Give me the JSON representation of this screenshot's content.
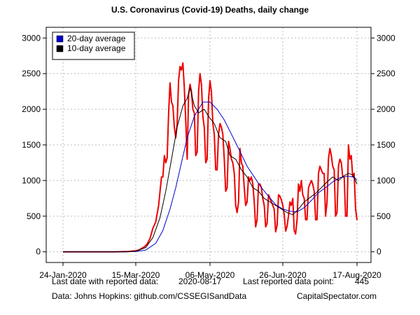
{
  "chart_data": {
    "type": "line",
    "title": "U.S. Coronavirus (Covid-19) Deaths, daily change",
    "x_start": "2020-01-24",
    "x_end": "2020-08-17",
    "x_ticks": [
      "2020-01-24",
      "2020-03-15",
      "2020-05-06",
      "2020-06-26",
      "2020-08-17"
    ],
    "x_tick_labels": [
      "24-Jan-2020",
      "15-Mar-2020",
      "06-May-2020",
      "26-Jun-2020",
      "17-Aug-2020"
    ],
    "ylim": [
      -150,
      3150
    ],
    "y_ticks": [
      0,
      500,
      1000,
      1500,
      2000,
      2500,
      3000
    ],
    "grid": true,
    "legend_position": "top-left",
    "colors": {
      "daily": "#ee0000",
      "avg20": "#0000cc",
      "avg10": "#000000"
    },
    "daily_points": [
      [
        "2020-01-24",
        0
      ],
      [
        "2020-02-29",
        0
      ],
      [
        "2020-03-05",
        2
      ],
      [
        "2020-03-10",
        5
      ],
      [
        "2020-03-15",
        15
      ],
      [
        "2020-03-17",
        25
      ],
      [
        "2020-03-19",
        45
      ],
      [
        "2020-03-21",
        70
      ],
      [
        "2020-03-23",
        110
      ],
      [
        "2020-03-25",
        190
      ],
      [
        "2020-03-27",
        330
      ],
      [
        "2020-03-29",
        420
      ],
      [
        "2020-03-31",
        650
      ],
      [
        "2020-04-02",
        1050
      ],
      [
        "2020-04-03",
        1050
      ],
      [
        "2020-04-04",
        1350
      ],
      [
        "2020-04-05",
        1250
      ],
      [
        "2020-04-06",
        1320
      ],
      [
        "2020-04-07",
        1950
      ],
      [
        "2020-04-08",
        2370
      ],
      [
        "2020-04-09",
        2100
      ],
      [
        "2020-04-10",
        2050
      ],
      [
        "2020-04-11",
        1750
      ],
      [
        "2020-04-12",
        1600
      ],
      [
        "2020-04-13",
        1800
      ],
      [
        "2020-04-14",
        2400
      ],
      [
        "2020-04-15",
        2600
      ],
      [
        "2020-04-16",
        2550
      ],
      [
        "2020-04-17",
        2650
      ],
      [
        "2020-04-18",
        2300
      ],
      [
        "2020-04-19",
        1850
      ],
      [
        "2020-04-20",
        1300
      ],
      [
        "2020-04-21",
        2200
      ],
      [
        "2020-04-22",
        2350
      ],
      [
        "2020-04-23",
        2250
      ],
      [
        "2020-04-24",
        2000
      ],
      [
        "2020-04-25",
        1950
      ],
      [
        "2020-04-26",
        1350
      ],
      [
        "2020-04-27",
        1400
      ],
      [
        "2020-04-28",
        2250
      ],
      [
        "2020-04-29",
        2500
      ],
      [
        "2020-04-30",
        2350
      ],
      [
        "2020-05-01",
        1900
      ],
      [
        "2020-05-02",
        1750
      ],
      [
        "2020-05-03",
        1250
      ],
      [
        "2020-05-04",
        1300
      ],
      [
        "2020-05-05",
        2150
      ],
      [
        "2020-05-06",
        2400
      ],
      [
        "2020-05-07",
        2250
      ],
      [
        "2020-05-08",
        1800
      ],
      [
        "2020-05-09",
        1650
      ],
      [
        "2020-05-10",
        1150
      ],
      [
        "2020-05-11",
        1150
      ],
      [
        "2020-05-12",
        1650
      ],
      [
        "2020-05-13",
        1800
      ],
      [
        "2020-05-14",
        1750
      ],
      [
        "2020-05-15",
        1650
      ],
      [
        "2020-05-16",
        1300
      ],
      [
        "2020-05-17",
        850
      ],
      [
        "2020-05-18",
        900
      ],
      [
        "2020-05-19",
        1550
      ],
      [
        "2020-05-20",
        1450
      ],
      [
        "2020-05-21",
        1300
      ],
      [
        "2020-05-22",
        1250
      ],
      [
        "2020-05-23",
        1100
      ],
      [
        "2020-05-24",
        650
      ],
      [
        "2020-05-25",
        550
      ],
      [
        "2020-05-26",
        700
      ],
      [
        "2020-05-27",
        1450
      ],
      [
        "2020-05-28",
        1250
      ],
      [
        "2020-05-29",
        1200
      ],
      [
        "2020-05-30",
        900
      ],
      [
        "2020-05-31",
        650
      ],
      [
        "2020-06-01",
        700
      ],
      [
        "2020-06-02",
        1050
      ],
      [
        "2020-06-03",
        1000
      ],
      [
        "2020-06-04",
        1050
      ],
      [
        "2020-06-05",
        950
      ],
      [
        "2020-06-06",
        700
      ],
      [
        "2020-06-07",
        350
      ],
      [
        "2020-06-08",
        450
      ],
      [
        "2020-06-09",
        950
      ],
      [
        "2020-06-10",
        950
      ],
      [
        "2020-06-11",
        900
      ],
      [
        "2020-06-12",
        750
      ],
      [
        "2020-06-13",
        650
      ],
      [
        "2020-06-14",
        350
      ],
      [
        "2020-06-15",
        400
      ],
      [
        "2020-06-16",
        800
      ],
      [
        "2020-06-17",
        750
      ],
      [
        "2020-06-18",
        700
      ],
      [
        "2020-06-19",
        650
      ],
      [
        "2020-06-20",
        600
      ],
      [
        "2020-06-21",
        280
      ],
      [
        "2020-06-22",
        370
      ],
      [
        "2020-06-23",
        800
      ],
      [
        "2020-06-24",
        780
      ],
      [
        "2020-06-25",
        730
      ],
      [
        "2020-06-26",
        650
      ],
      [
        "2020-06-27",
        520
      ],
      [
        "2020-06-28",
        290
      ],
      [
        "2020-06-29",
        360
      ],
      [
        "2020-06-30",
        500
      ],
      [
        "2020-07-01",
        700
      ],
      [
        "2020-07-02",
        650
      ],
      [
        "2020-07-03",
        750
      ],
      [
        "2020-07-04",
        300
      ],
      [
        "2020-07-05",
        250
      ],
      [
        "2020-07-06",
        450
      ],
      [
        "2020-07-07",
        950
      ],
      [
        "2020-07-08",
        850
      ],
      [
        "2020-07-09",
        1000
      ],
      [
        "2020-07-10",
        800
      ],
      [
        "2020-07-11",
        750
      ],
      [
        "2020-07-12",
        450
      ],
      [
        "2020-07-13",
        450
      ],
      [
        "2020-07-14",
        900
      ],
      [
        "2020-07-15",
        950
      ],
      [
        "2020-07-16",
        1000
      ],
      [
        "2020-07-17",
        950
      ],
      [
        "2020-07-18",
        850
      ],
      [
        "2020-07-19",
        450
      ],
      [
        "2020-07-20",
        450
      ],
      [
        "2020-07-21",
        1100
      ],
      [
        "2020-07-22",
        1200
      ],
      [
        "2020-07-23",
        1150
      ],
      [
        "2020-07-24",
        1100
      ],
      [
        "2020-07-25",
        1100
      ],
      [
        "2020-07-26",
        500
      ],
      [
        "2020-07-27",
        700
      ],
      [
        "2020-07-28",
        1300
      ],
      [
        "2020-07-29",
        1450
      ],
      [
        "2020-07-30",
        1350
      ],
      [
        "2020-07-31",
        1200
      ],
      [
        "2020-08-01",
        1150
      ],
      [
        "2020-08-02",
        500
      ],
      [
        "2020-08-03",
        550
      ],
      [
        "2020-08-04",
        1200
      ],
      [
        "2020-08-05",
        1300
      ],
      [
        "2020-08-06",
        1250
      ],
      [
        "2020-08-07",
        1050
      ],
      [
        "2020-08-08",
        1050
      ],
      [
        "2020-08-09",
        500
      ],
      [
        "2020-08-10",
        500
      ],
      [
        "2020-08-11",
        1500
      ],
      [
        "2020-08-12",
        1300
      ],
      [
        "2020-08-13",
        1350
      ],
      [
        "2020-08-14",
        1050
      ],
      [
        "2020-08-15",
        1100
      ],
      [
        "2020-08-16",
        600
      ],
      [
        "2020-08-17",
        445
      ]
    ],
    "series": [
      {
        "key": "avg20",
        "name": "20-day average",
        "points": [
          [
            "2020-01-24",
            0
          ],
          [
            "2020-03-05",
            0
          ],
          [
            "2020-03-15",
            5
          ],
          [
            "2020-03-22",
            25
          ],
          [
            "2020-03-29",
            120
          ],
          [
            "2020-04-03",
            300
          ],
          [
            "2020-04-08",
            600
          ],
          [
            "2020-04-12",
            900
          ],
          [
            "2020-04-16",
            1250
          ],
          [
            "2020-04-20",
            1600
          ],
          [
            "2020-04-25",
            1900
          ],
          [
            "2020-05-01",
            2100
          ],
          [
            "2020-05-06",
            2100
          ],
          [
            "2020-05-11",
            2000
          ],
          [
            "2020-05-16",
            1850
          ],
          [
            "2020-05-21",
            1650
          ],
          [
            "2020-05-26",
            1450
          ],
          [
            "2020-06-01",
            1200
          ],
          [
            "2020-06-06",
            1050
          ],
          [
            "2020-06-11",
            900
          ],
          [
            "2020-06-16",
            780
          ],
          [
            "2020-06-21",
            660
          ],
          [
            "2020-06-26",
            600
          ],
          [
            "2020-07-01",
            570
          ],
          [
            "2020-07-06",
            560
          ],
          [
            "2020-07-11",
            620
          ],
          [
            "2020-07-16",
            720
          ],
          [
            "2020-07-21",
            830
          ],
          [
            "2020-07-26",
            900
          ],
          [
            "2020-07-31",
            980
          ],
          [
            "2020-08-05",
            1040
          ],
          [
            "2020-08-10",
            1060
          ],
          [
            "2020-08-15",
            1050
          ],
          [
            "2020-08-17",
            1000
          ]
        ]
      },
      {
        "key": "avg10",
        "name": "10-day average",
        "points": [
          [
            "2020-01-24",
            0
          ],
          [
            "2020-03-08",
            0
          ],
          [
            "2020-03-15",
            10
          ],
          [
            "2020-03-22",
            60
          ],
          [
            "2020-03-27",
            200
          ],
          [
            "2020-04-01",
            480
          ],
          [
            "2020-04-05",
            850
          ],
          [
            "2020-04-09",
            1300
          ],
          [
            "2020-04-13",
            1750
          ],
          [
            "2020-04-17",
            2050
          ],
          [
            "2020-04-20",
            2150
          ],
          [
            "2020-04-22",
            2300
          ],
          [
            "2020-04-25",
            2050
          ],
          [
            "2020-04-28",
            1950
          ],
          [
            "2020-05-02",
            2000
          ],
          [
            "2020-05-05",
            1900
          ],
          [
            "2020-05-09",
            1800
          ],
          [
            "2020-05-13",
            1600
          ],
          [
            "2020-05-17",
            1550
          ],
          [
            "2020-05-20",
            1350
          ],
          [
            "2020-05-24",
            1300
          ],
          [
            "2020-05-28",
            1150
          ],
          [
            "2020-06-01",
            1050
          ],
          [
            "2020-06-05",
            900
          ],
          [
            "2020-06-09",
            850
          ],
          [
            "2020-06-13",
            750
          ],
          [
            "2020-06-17",
            700
          ],
          [
            "2020-06-21",
            650
          ],
          [
            "2020-06-25",
            600
          ],
          [
            "2020-06-29",
            550
          ],
          [
            "2020-07-03",
            520
          ],
          [
            "2020-07-07",
            600
          ],
          [
            "2020-07-11",
            700
          ],
          [
            "2020-07-15",
            760
          ],
          [
            "2020-07-19",
            820
          ],
          [
            "2020-07-23",
            900
          ],
          [
            "2020-07-27",
            980
          ],
          [
            "2020-07-31",
            1050
          ],
          [
            "2020-08-04",
            1000
          ],
          [
            "2020-08-08",
            1070
          ],
          [
            "2020-08-11",
            1100
          ],
          [
            "2020-08-14",
            1080
          ],
          [
            "2020-08-17",
            950
          ]
        ]
      }
    ]
  },
  "footer": {
    "last_date_label": "Last date with reported data:",
    "last_date_value": "2020-08-17",
    "last_point_label": "Last reported data point:",
    "last_point_value": "445",
    "source": "Data: Johns Hopkins: github.com/CSSEGISandData",
    "credit": "CapitalSpectator.com"
  }
}
